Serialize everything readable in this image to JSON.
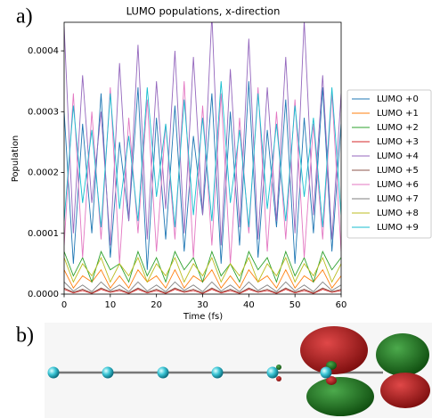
{
  "chart_data": {
    "type": "line",
    "title": "LUMO populations, x-direction",
    "x_label": "Time (fs)",
    "y_label": "Population",
    "xlim": [
      0,
      60
    ],
    "ylim": [
      0,
      0.000447
    ],
    "xticks": [
      0,
      10,
      20,
      30,
      40,
      50,
      60
    ],
    "yticks": [
      {
        "value": 0,
        "label": "0.0000"
      },
      {
        "value": 0.0001,
        "label": "0.0001"
      },
      {
        "value": 0.0002,
        "label": "0.0002"
      },
      {
        "value": 0.0003,
        "label": "0.0003"
      },
      {
        "value": 0.0004,
        "label": "0.0004"
      }
    ],
    "legend": "right",
    "x": [
      0,
      2,
      4,
      6,
      8,
      10,
      12,
      14,
      16,
      18,
      20,
      22,
      24,
      26,
      28,
      30,
      32,
      34,
      36,
      38,
      40,
      42,
      44,
      46,
      48,
      50,
      52,
      54,
      56,
      58,
      60
    ],
    "series": [
      {
        "name": "LUMO +0",
        "color": "#1f77b4",
        "values": [
          0.0003,
          5e-05,
          0.00028,
          0.0001,
          0.00033,
          6e-05,
          0.00025,
          0.00012,
          0.00034,
          4e-05,
          0.00029,
          9e-05,
          0.00031,
          7e-05,
          0.00026,
          0.00013,
          0.00033,
          5e-05,
          0.0003,
          8e-05,
          0.00035,
          6e-05,
          0.00027,
          0.00011,
          0.00032,
          5e-05,
          0.00029,
          0.0001,
          0.00034,
          7e-05,
          0.00028
        ]
      },
      {
        "name": "LUMO +1",
        "color": "#ff7f0e",
        "values": [
          4e-05,
          1e-05,
          3e-05,
          2e-05,
          4e-05,
          1e-05,
          3e-05,
          1e-05,
          4e-05,
          2e-05,
          3e-05,
          1e-05,
          4e-05,
          1e-05,
          3e-05,
          2e-05,
          4e-05,
          1e-05,
          3e-05,
          1e-05,
          4e-05,
          2e-05,
          3e-05,
          1e-05,
          4e-05,
          1e-05,
          3e-05,
          2e-05,
          4e-05,
          1e-05,
          3e-05
        ]
      },
      {
        "name": "LUMO +2",
        "color": "#2ca02c",
        "values": [
          7e-05,
          3e-05,
          6e-05,
          2e-05,
          7e-05,
          4e-05,
          5e-05,
          2e-05,
          7e-05,
          3e-05,
          6e-05,
          2e-05,
          7e-05,
          4e-05,
          6e-05,
          2e-05,
          7e-05,
          3e-05,
          5e-05,
          2e-05,
          7e-05,
          4e-05,
          6e-05,
          2e-05,
          7e-05,
          3e-05,
          6e-05,
          2e-05,
          7e-05,
          4e-05,
          6e-05
        ]
      },
      {
        "name": "LUMO +3",
        "color": "#d62728",
        "values": [
          8e-06,
          2e-06,
          6e-06,
          1e-06,
          8e-06,
          3e-06,
          6e-06,
          1e-06,
          8e-06,
          2e-06,
          6e-06,
          1e-06,
          8e-06,
          3e-06,
          6e-06,
          1e-06,
          8e-06,
          2e-06,
          6e-06,
          1e-06,
          8e-06,
          3e-06,
          6e-06,
          1e-06,
          8e-06,
          2e-06,
          6e-06,
          1e-06,
          8e-06,
          3e-06,
          6e-06
        ]
      },
      {
        "name": "LUMO +4",
        "color": "#9467bd",
        "values": [
          0.00044,
          0.0001,
          0.00036,
          0.00015,
          0.0003,
          8e-05,
          0.00038,
          0.00012,
          0.00041,
          9e-05,
          0.00035,
          0.00014,
          0.0004,
          0.0001,
          0.00039,
          0.00013,
          0.00046,
          8e-05,
          0.00037,
          0.00011,
          0.00042,
          9e-05,
          0.00034,
          0.00012,
          0.00039,
          0.0001,
          0.00045,
          0.00013,
          0.00036,
          9e-05,
          0.00033
        ]
      },
      {
        "name": "LUMO +5",
        "color": "#8c564b",
        "values": [
          1e-05,
          3e-06,
          8e-06,
          2e-06,
          1e-05,
          4e-06,
          8e-06,
          2e-06,
          1e-05,
          3e-06,
          8e-06,
          2e-06,
          1e-05,
          4e-06,
          8e-06,
          2e-06,
          1e-05,
          3e-06,
          8e-06,
          2e-06,
          1e-05,
          4e-06,
          8e-06,
          2e-06,
          1e-05,
          3e-06,
          8e-06,
          2e-06,
          1e-05,
          4e-06,
          8e-06
        ]
      },
      {
        "name": "LUMO +6",
        "color": "#e377c2",
        "values": [
          8e-05,
          0.00033,
          6e-05,
          0.0003,
          9e-05,
          0.00034,
          5e-05,
          0.00029,
          0.0001,
          0.00032,
          7e-05,
          0.00028,
          9e-05,
          0.00035,
          6e-05,
          0.00031,
          8e-05,
          0.00033,
          5e-05,
          0.00029,
          0.0001,
          0.00034,
          7e-05,
          0.0003,
          9e-05,
          0.00032,
          6e-05,
          0.00028,
          9e-05,
          0.00033,
          7e-05
        ]
      },
      {
        "name": "LUMO +7",
        "color": "#7f7f7f",
        "values": [
          2e-05,
          5e-06,
          1.5e-05,
          4e-06,
          2e-05,
          6e-06,
          1.5e-05,
          4e-06,
          2e-05,
          5e-06,
          1.5e-05,
          4e-06,
          2e-05,
          6e-06,
          1.5e-05,
          4e-06,
          2e-05,
          5e-06,
          1.5e-05,
          4e-06,
          2e-05,
          6e-06,
          1.5e-05,
          4e-06,
          2e-05,
          5e-06,
          1.5e-05,
          4e-06,
          2e-05,
          6e-06,
          1.5e-05
        ]
      },
      {
        "name": "LUMO +8",
        "color": "#bcbd22",
        "values": [
          6e-05,
          2e-05,
          5e-05,
          3e-05,
          6e-05,
          2e-05,
          5e-05,
          3e-05,
          6e-05,
          2e-05,
          5e-05,
          3e-05,
          6e-05,
          2e-05,
          5e-05,
          3e-05,
          6e-05,
          2e-05,
          5e-05,
          3e-05,
          6e-05,
          2e-05,
          5e-05,
          3e-05,
          6e-05,
          2e-05,
          5e-05,
          3e-05,
          6e-05,
          2e-05,
          5e-05
        ]
      },
      {
        "name": "LUMO +9",
        "color": "#17becf",
        "values": [
          0.00012,
          0.00031,
          0.00015,
          0.00027,
          0.00011,
          0.00033,
          0.00014,
          0.00026,
          0.00012,
          0.00034,
          0.00016,
          0.00028,
          0.00011,
          0.00032,
          0.00013,
          0.00029,
          0.00012,
          0.00035,
          0.00015,
          0.00027,
          0.00011,
          0.00033,
          0.00014,
          0.00028,
          0.00012,
          0.00031,
          0.00016,
          0.00029,
          0.00011,
          0.00034,
          0.00013
        ]
      }
    ]
  },
  "panel_labels": [
    "a)",
    "b)"
  ]
}
